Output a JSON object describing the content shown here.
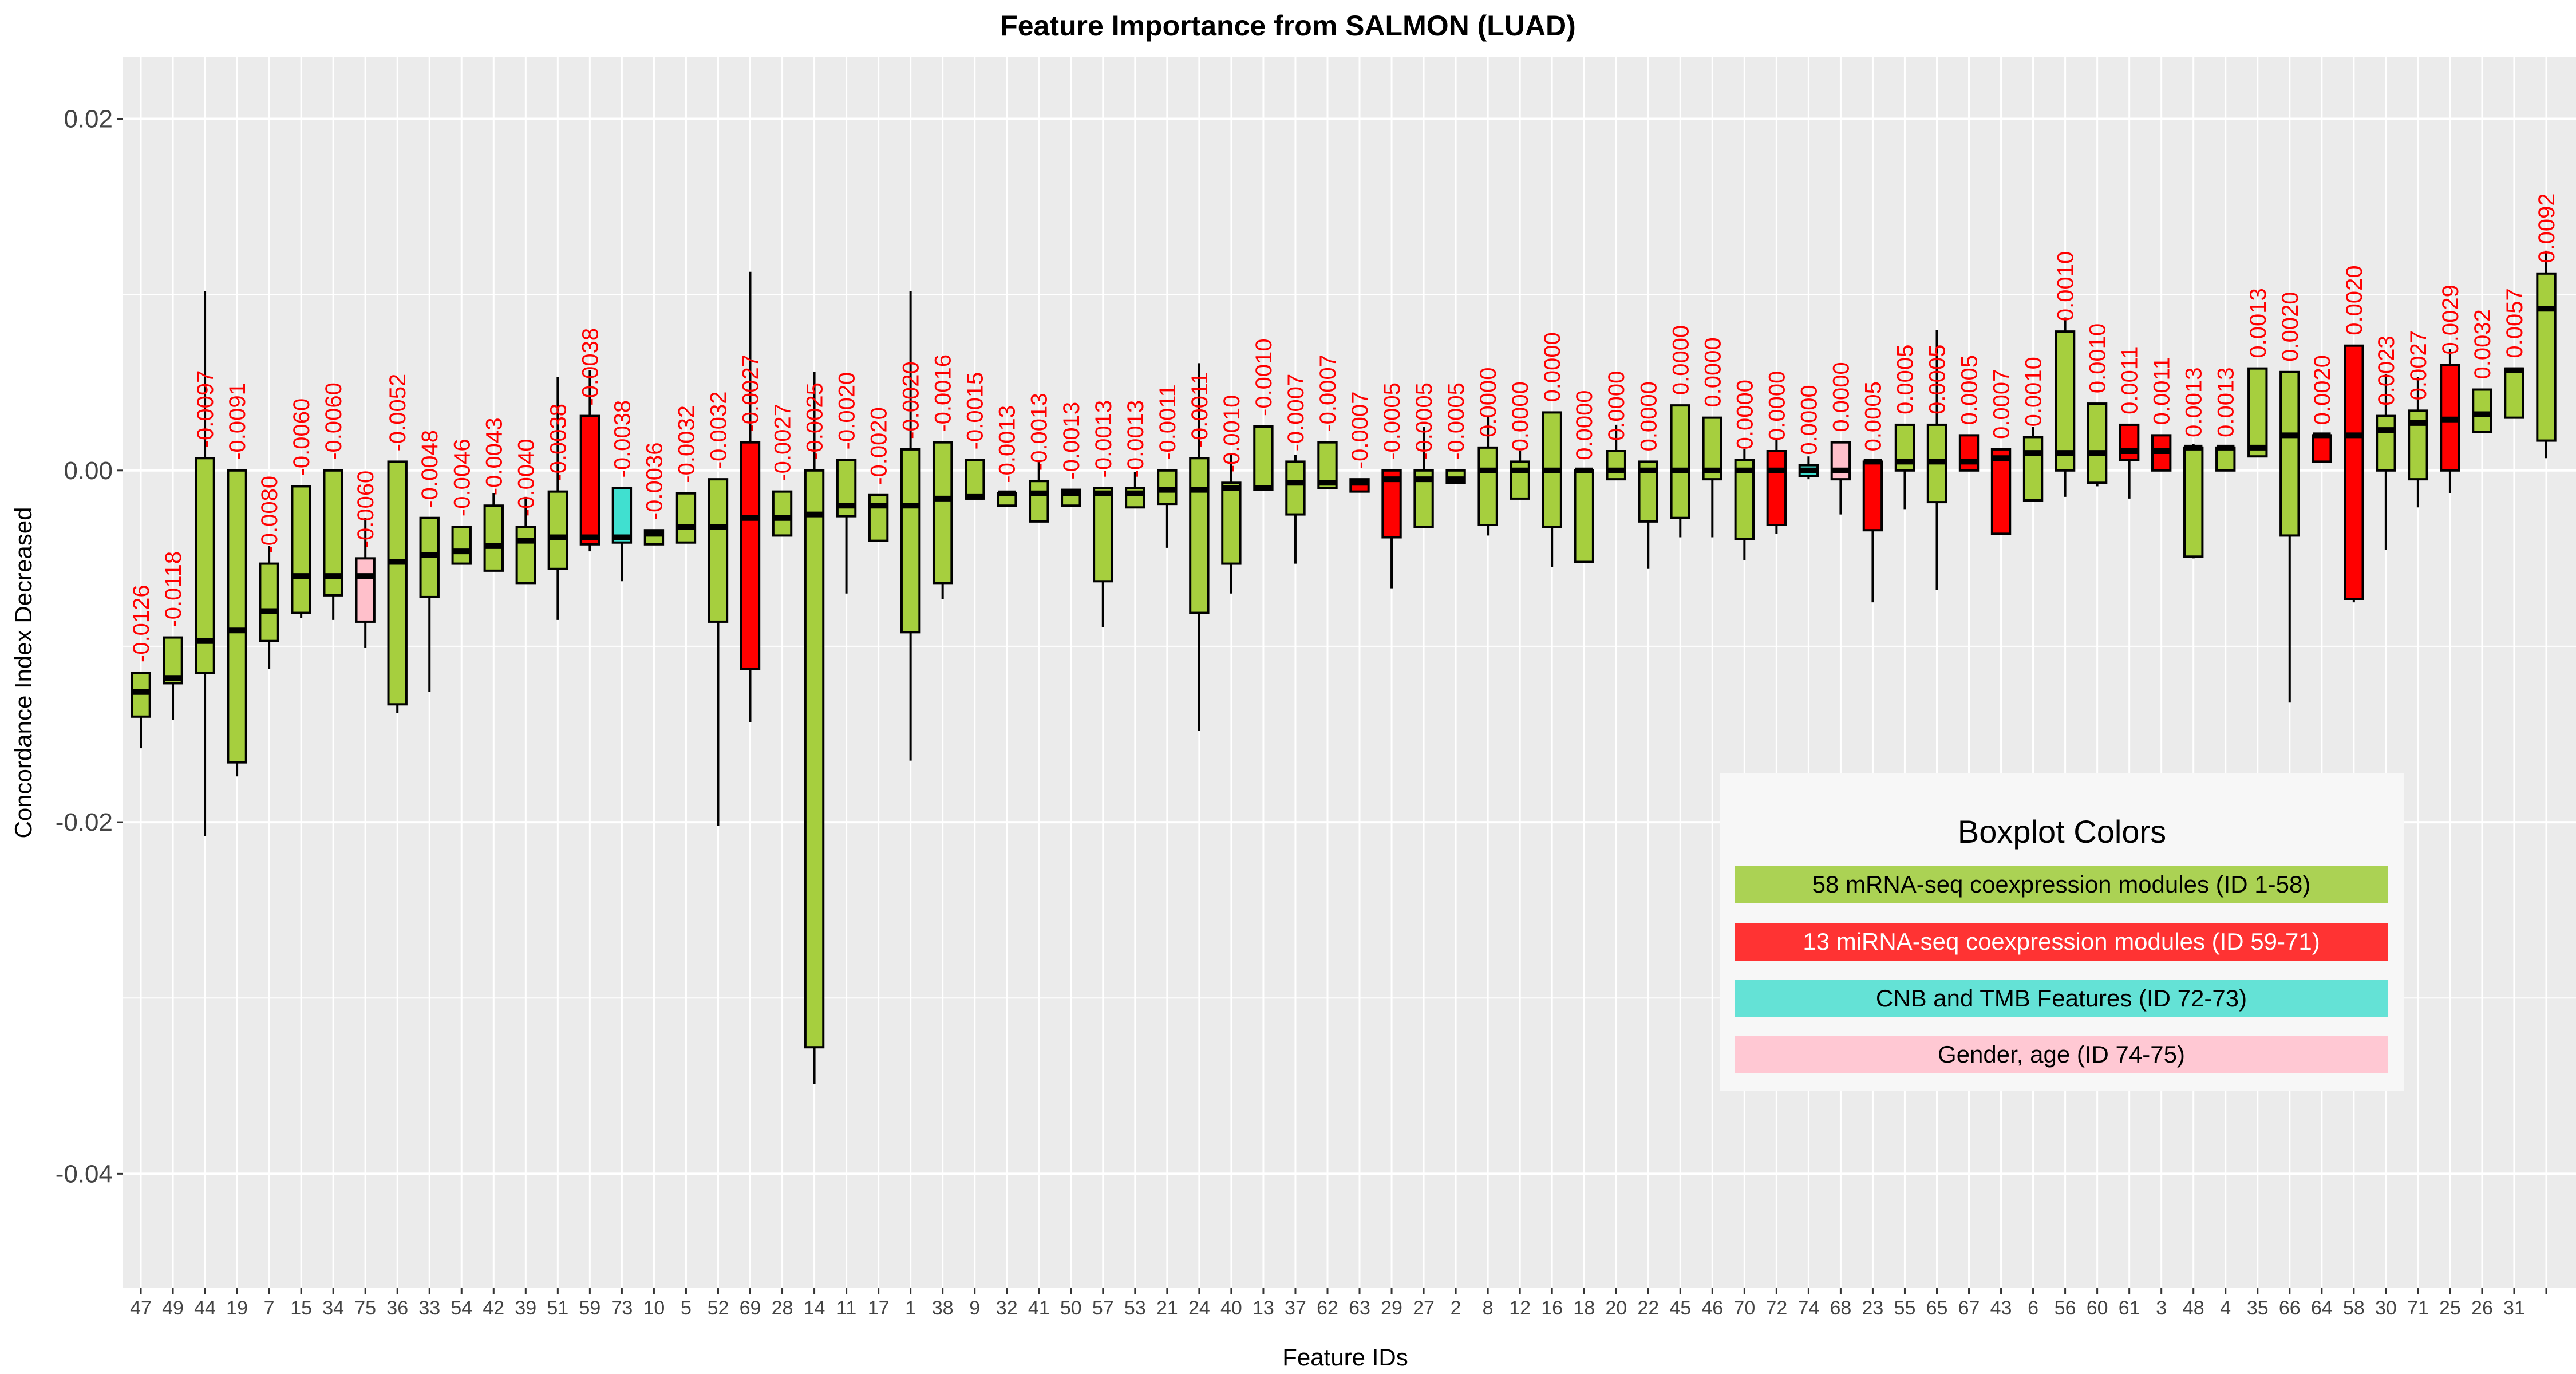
{
  "chart_data": {
    "type": "boxplot",
    "title": "Feature Importance from SALMON (LUAD)",
    "xlabel": "Feature IDs",
    "ylabel": "Concordance Index Decreased",
    "ylim": [
      -0.0465,
      0.0235
    ],
    "yticks": [
      0.02,
      0.0,
      -0.02,
      -0.04
    ],
    "ytick_labels": [
      "0.02",
      "0.00",
      "-0.02",
      "-0.04"
    ],
    "grid": true,
    "legend": {
      "title": "Boxplot Colors",
      "placement": "bottom-right",
      "entries": [
        {
          "label": "58 mRNA-seq coexpression modules (ID 1-58)",
          "color": "#abd254",
          "text_color": "#000000"
        },
        {
          "label": "13 miRNA-seq coexpression modules (ID 59-71)",
          "color": "#ff3333",
          "text_color": "#ffffff"
        },
        {
          "label": "CNB and TMB Features (ID 72-73)",
          "color": "#64e2d6",
          "text_color": "#000000"
        },
        {
          "label": "Gender, age (ID 74-75)",
          "color": "#ffc8d3",
          "text_color": "#000000"
        }
      ]
    },
    "colors": {
      "mrna": "#a6cf3e",
      "mirna": "#ff0000",
      "cnb": "#40e0d0",
      "gender": "#ffc0cb"
    },
    "boxes": [
      {
        "id": "47",
        "group": "mrna",
        "label": "-0.0126",
        "median": -0.0126,
        "q1": -0.014,
        "q3": -0.0115,
        "lo": -0.0158,
        "hi": -0.0115
      },
      {
        "id": "49",
        "group": "mrna",
        "label": "-0.0118",
        "median": -0.0118,
        "q1": -0.0121,
        "q3": -0.0095,
        "lo": -0.0142,
        "hi": -0.0095
      },
      {
        "id": "44",
        "group": "mrna",
        "label": "-0.0097",
        "median": -0.0097,
        "q1": -0.0115,
        "q3": 0.0007,
        "lo": -0.0208,
        "hi": 0.0102
      },
      {
        "id": "19",
        "group": "mrna",
        "label": "-0.0091",
        "median": -0.0091,
        "q1": -0.0166,
        "q3": 0.0,
        "lo": -0.0174,
        "hi": 0.0
      },
      {
        "id": "7",
        "group": "mrna",
        "label": "-0.0080",
        "median": -0.008,
        "q1": -0.0097,
        "q3": -0.0053,
        "lo": -0.0113,
        "hi": -0.0043
      },
      {
        "id": "15",
        "group": "mrna",
        "label": "-0.0060",
        "median": -0.006,
        "q1": -0.0081,
        "q3": -0.0009,
        "lo": -0.0084,
        "hi": -0.0009
      },
      {
        "id": "34",
        "group": "mrna",
        "label": "-0.0060",
        "median": -0.006,
        "q1": -0.0071,
        "q3": 0.0,
        "lo": -0.0085,
        "hi": 0.0
      },
      {
        "id": "75",
        "group": "gender",
        "label": "-0.0060",
        "median": -0.006,
        "q1": -0.0086,
        "q3": -0.005,
        "lo": -0.0101,
        "hi": -0.0027
      },
      {
        "id": "36",
        "group": "mrna",
        "label": "-0.0052",
        "median": -0.0052,
        "q1": -0.0133,
        "q3": 0.0005,
        "lo": -0.0138,
        "hi": 0.0005
      },
      {
        "id": "33",
        "group": "mrna",
        "label": "-0.0048",
        "median": -0.0048,
        "q1": -0.0072,
        "q3": -0.0027,
        "lo": -0.0126,
        "hi": -0.0027
      },
      {
        "id": "54",
        "group": "mrna",
        "label": "-0.0046",
        "median": -0.0046,
        "q1": -0.0053,
        "q3": -0.0032,
        "lo": -0.0053,
        "hi": -0.0032
      },
      {
        "id": "42",
        "group": "mrna",
        "label": "-0.0043",
        "median": -0.0043,
        "q1": -0.0057,
        "q3": -0.002,
        "lo": -0.0057,
        "hi": -0.0013
      },
      {
        "id": "39",
        "group": "mrna",
        "label": "-0.0040",
        "median": -0.004,
        "q1": -0.0064,
        "q3": -0.0032,
        "lo": -0.0064,
        "hi": -0.0015
      },
      {
        "id": "51",
        "group": "mrna",
        "label": "-0.0038",
        "median": -0.0038,
        "q1": -0.0056,
        "q3": -0.0012,
        "lo": -0.0085,
        "hi": 0.0053
      },
      {
        "id": "59",
        "group": "mirna",
        "label": "-0.0038",
        "median": -0.0038,
        "q1": -0.0042,
        "q3": 0.0031,
        "lo": -0.0046,
        "hi": 0.0057
      },
      {
        "id": "73",
        "group": "cnb",
        "label": "-0.0038",
        "median": -0.0038,
        "q1": -0.0041,
        "q3": -0.001,
        "lo": -0.0063,
        "hi": -0.001
      },
      {
        "id": "10",
        "group": "mrna",
        "label": "-0.0036",
        "median": -0.0036,
        "q1": -0.0042,
        "q3": -0.0034,
        "lo": -0.0042,
        "hi": -0.0034
      },
      {
        "id": "5",
        "group": "mrna",
        "label": "-0.0032",
        "median": -0.0032,
        "q1": -0.0041,
        "q3": -0.0013,
        "lo": -0.0041,
        "hi": -0.0013
      },
      {
        "id": "52",
        "group": "mrna",
        "label": "-0.0032",
        "median": -0.0032,
        "q1": -0.0086,
        "q3": -0.0005,
        "lo": -0.0202,
        "hi": -0.0005
      },
      {
        "id": "69",
        "group": "mirna",
        "label": "-0.0027",
        "median": -0.0027,
        "q1": -0.0113,
        "q3": 0.0016,
        "lo": -0.0143,
        "hi": 0.0113
      },
      {
        "id": "28",
        "group": "mrna",
        "label": "-0.0027",
        "median": -0.0027,
        "q1": -0.0037,
        "q3": -0.0012,
        "lo": -0.0037,
        "hi": -0.0012
      },
      {
        "id": "14",
        "group": "mrna",
        "label": "-0.0025",
        "median": -0.0025,
        "q1": -0.0328,
        "q3": 0.0,
        "lo": -0.0349,
        "hi": 0.0056
      },
      {
        "id": "11",
        "group": "mrna",
        "label": "-0.0020",
        "median": -0.002,
        "q1": -0.0026,
        "q3": 0.0006,
        "lo": -0.007,
        "hi": 0.0006
      },
      {
        "id": "17",
        "group": "mrna",
        "label": "-0.0020",
        "median": -0.002,
        "q1": -0.004,
        "q3": -0.0014,
        "lo": -0.004,
        "hi": -0.0014
      },
      {
        "id": "1",
        "group": "mrna",
        "label": "-0.0020",
        "median": -0.002,
        "q1": -0.0092,
        "q3": 0.0012,
        "lo": -0.0165,
        "hi": 0.0102
      },
      {
        "id": "38",
        "group": "mrna",
        "label": "-0.0016",
        "median": -0.0016,
        "q1": -0.0064,
        "q3": 0.0016,
        "lo": -0.0073,
        "hi": 0.0016
      },
      {
        "id": "9",
        "group": "mrna",
        "label": "-0.0015",
        "median": -0.0015,
        "q1": -0.0016,
        "q3": 0.0006,
        "lo": -0.0016,
        "hi": 0.0006
      },
      {
        "id": "32",
        "group": "mrna",
        "label": "-0.0013",
        "median": -0.0013,
        "q1": -0.002,
        "q3": -0.0013,
        "lo": -0.002,
        "hi": -0.0013
      },
      {
        "id": "41",
        "group": "mrna",
        "label": "-0.0013",
        "median": -0.0013,
        "q1": -0.0029,
        "q3": -0.0006,
        "lo": -0.0029,
        "hi": 0.0006
      },
      {
        "id": "50",
        "group": "mrna",
        "label": "-0.0013",
        "median": -0.0013,
        "q1": -0.002,
        "q3": -0.0011,
        "lo": -0.002,
        "hi": -0.0011
      },
      {
        "id": "57",
        "group": "mrna",
        "label": "-0.0013",
        "median": -0.0013,
        "q1": -0.0063,
        "q3": -0.001,
        "lo": -0.0089,
        "hi": -0.001
      },
      {
        "id": "53",
        "group": "mrna",
        "label": "-0.0013",
        "median": -0.0013,
        "q1": -0.0021,
        "q3": -0.001,
        "lo": -0.0021,
        "hi": -0.0001
      },
      {
        "id": "21",
        "group": "mrna",
        "label": "-0.0011",
        "median": -0.0011,
        "q1": -0.0019,
        "q3": 0.0,
        "lo": -0.0044,
        "hi": 0.0
      },
      {
        "id": "24",
        "group": "mrna",
        "label": "-0.0011",
        "median": -0.0011,
        "q1": -0.0081,
        "q3": 0.0007,
        "lo": -0.0148,
        "hi": 0.0061
      },
      {
        "id": "40",
        "group": "mrna",
        "label": "-0.0010",
        "median": -0.001,
        "q1": -0.0053,
        "q3": -0.0007,
        "lo": -0.007,
        "hi": 0.001
      },
      {
        "id": "13",
        "group": "mrna",
        "label": "-0.0010",
        "median": -0.001,
        "q1": -0.0011,
        "q3": 0.0025,
        "lo": -0.0011,
        "hi": 0.0025
      },
      {
        "id": "37",
        "group": "mrna",
        "label": "-0.0007",
        "median": -0.0007,
        "q1": -0.0025,
        "q3": 0.0005,
        "lo": -0.0053,
        "hi": 0.0009
      },
      {
        "id": "62",
        "group": "mrna",
        "label": "-0.0007",
        "median": -0.0007,
        "q1": -0.001,
        "q3": 0.0016,
        "lo": -0.001,
        "hi": 0.0016
      },
      {
        "id": "63",
        "group": "mirna",
        "label": "-0.0007",
        "median": -0.0007,
        "q1": -0.0012,
        "q3": -0.0005,
        "lo": -0.0012,
        "hi": -0.0005
      },
      {
        "id": "29",
        "group": "mirna",
        "label": "-0.0005",
        "median": -0.0005,
        "q1": -0.0038,
        "q3": 0.0,
        "lo": -0.0067,
        "hi": 0.0
      },
      {
        "id": "27",
        "group": "mrna",
        "label": "-0.0005",
        "median": -0.0005,
        "q1": -0.0032,
        "q3": 0.0,
        "lo": -0.0032,
        "hi": 0.0025
      },
      {
        "id": "2",
        "group": "mrna",
        "label": "-0.0005",
        "median": -0.0005,
        "q1": -0.0007,
        "q3": 0.0,
        "lo": -0.0007,
        "hi": 0.0
      },
      {
        "id": "8",
        "group": "mrna",
        "label": "0.0000",
        "median": 0.0,
        "q1": -0.0031,
        "q3": 0.0013,
        "lo": -0.0037,
        "hi": 0.0031
      },
      {
        "id": "12",
        "group": "mrna",
        "label": "0.0000",
        "median": 0.0,
        "q1": -0.0016,
        "q3": 0.0005,
        "lo": -0.0016,
        "hi": 0.0011
      },
      {
        "id": "16",
        "group": "mrna",
        "label": "0.0000",
        "median": 0.0,
        "q1": -0.0032,
        "q3": 0.0033,
        "lo": -0.0055,
        "hi": 0.0033
      },
      {
        "id": "18",
        "group": "mrna",
        "label": "0.0000",
        "median": 0.0,
        "q1": -0.0052,
        "q3": 0.0,
        "lo": -0.0052,
        "hi": 0.0
      },
      {
        "id": "20",
        "group": "mrna",
        "label": "0.0000",
        "median": 0.0,
        "q1": -0.0005,
        "q3": 0.0011,
        "lo": -0.0005,
        "hi": 0.0026
      },
      {
        "id": "22",
        "group": "mrna",
        "label": "0.0000",
        "median": 0.0,
        "q1": -0.0029,
        "q3": 0.0005,
        "lo": -0.0056,
        "hi": 0.0005
      },
      {
        "id": "45",
        "group": "mrna",
        "label": "0.0000",
        "median": 0.0,
        "q1": -0.0027,
        "q3": 0.0037,
        "lo": -0.0038,
        "hi": 0.0037
      },
      {
        "id": "46",
        "group": "mrna",
        "label": "0.0000",
        "median": 0.0,
        "q1": -0.0005,
        "q3": 0.003,
        "lo": -0.0038,
        "hi": 0.003
      },
      {
        "id": "70",
        "group": "mrna",
        "label": "0.0000",
        "median": 0.0,
        "q1": -0.0039,
        "q3": 0.0006,
        "lo": -0.0051,
        "hi": 0.0012
      },
      {
        "id": "72",
        "group": "mirna",
        "label": "0.0000",
        "median": 0.0,
        "q1": -0.0031,
        "q3": 0.0011,
        "lo": -0.0036,
        "hi": 0.0018
      },
      {
        "id": "74",
        "group": "cnb",
        "label": "0.0000",
        "median": 0.0,
        "q1": -0.0003,
        "q3": 0.0003,
        "lo": -0.0005,
        "hi": 0.0008
      },
      {
        "id": "68",
        "group": "gender",
        "label": "0.0000",
        "median": 0.0,
        "q1": -0.0005,
        "q3": 0.0016,
        "lo": -0.0025,
        "hi": 0.0016
      },
      {
        "id": "23",
        "group": "mirna",
        "label": "0.0005",
        "median": 0.0005,
        "q1": -0.0034,
        "q3": 0.0005,
        "lo": -0.0075,
        "hi": 0.0005
      },
      {
        "id": "55",
        "group": "mrna",
        "label": "0.0005",
        "median": 0.0005,
        "q1": 0.0,
        "q3": 0.0026,
        "lo": -0.0022,
        "hi": 0.0026
      },
      {
        "id": "65",
        "group": "mrna",
        "label": "0.0005",
        "median": 0.0005,
        "q1": -0.0018,
        "q3": 0.0026,
        "lo": -0.0068,
        "hi": 0.008
      },
      {
        "id": "67",
        "group": "mirna",
        "label": "0.0005",
        "median": 0.0005,
        "q1": 0.0,
        "q3": 0.002,
        "lo": 0.0,
        "hi": 0.002
      },
      {
        "id": "43",
        "group": "mirna",
        "label": "0.0007",
        "median": 0.0007,
        "q1": -0.0036,
        "q3": 0.0012,
        "lo": -0.0036,
        "hi": 0.0012
      },
      {
        "id": "6",
        "group": "mrna",
        "label": "0.0010",
        "median": 0.001,
        "q1": -0.0017,
        "q3": 0.0019,
        "lo": -0.0017,
        "hi": 0.0025
      },
      {
        "id": "56",
        "group": "mrna",
        "label": "0.0010",
        "median": 0.001,
        "q1": 0.0,
        "q3": 0.0079,
        "lo": -0.0015,
        "hi": 0.0087
      },
      {
        "id": "60",
        "group": "mrna",
        "label": "0.0010",
        "median": 0.001,
        "q1": -0.0007,
        "q3": 0.0038,
        "lo": -0.0009,
        "hi": 0.0038
      },
      {
        "id": "61",
        "group": "mirna",
        "label": "0.0011",
        "median": 0.0011,
        "q1": 0.0006,
        "q3": 0.0026,
        "lo": -0.0016,
        "hi": 0.0026
      },
      {
        "id": "3",
        "group": "mirna",
        "label": "0.0011",
        "median": 0.0011,
        "q1": 0.0,
        "q3": 0.002,
        "lo": 0.0,
        "hi": 0.002
      },
      {
        "id": "48",
        "group": "mrna",
        "label": "0.0013",
        "median": 0.0013,
        "q1": -0.0049,
        "q3": 0.0013,
        "lo": -0.005,
        "hi": 0.0015
      },
      {
        "id": "4",
        "group": "mrna",
        "label": "0.0013",
        "median": 0.0013,
        "q1": 0.0,
        "q3": 0.0013,
        "lo": 0.0,
        "hi": 0.0013
      },
      {
        "id": "35",
        "group": "mrna",
        "label": "0.0013",
        "median": 0.0013,
        "q1": 0.0008,
        "q3": 0.0058,
        "lo": 0.0008,
        "hi": 0.0058
      },
      {
        "id": "66",
        "group": "mrna",
        "label": "0.0020",
        "median": 0.002,
        "q1": -0.0037,
        "q3": 0.0056,
        "lo": -0.0132,
        "hi": 0.0056
      },
      {
        "id": "64",
        "group": "mirna",
        "label": "0.0020",
        "median": 0.002,
        "q1": 0.0005,
        "q3": 0.002,
        "lo": 0.0005,
        "hi": 0.002
      },
      {
        "id": "58",
        "group": "mirna",
        "label": "0.0020",
        "median": 0.002,
        "q1": -0.0073,
        "q3": 0.0071,
        "lo": -0.0075,
        "hi": 0.0071
      },
      {
        "id": "30",
        "group": "mrna",
        "label": "0.0023",
        "median": 0.0023,
        "q1": 0.0,
        "q3": 0.0031,
        "lo": -0.0045,
        "hi": 0.0055
      },
      {
        "id": "71",
        "group": "mrna",
        "label": "0.0027",
        "median": 0.0027,
        "q1": -0.0005,
        "q3": 0.0034,
        "lo": -0.0021,
        "hi": 0.0053
      },
      {
        "id": "25",
        "group": "mirna",
        "label": "0.0029",
        "median": 0.0029,
        "q1": 0.0,
        "q3": 0.006,
        "lo": -0.0013,
        "hi": 0.0069
      },
      {
        "id": "26",
        "group": "mrna",
        "label": "0.0032",
        "median": 0.0032,
        "q1": 0.0022,
        "q3": 0.0046,
        "lo": 0.0022,
        "hi": 0.0046
      },
      {
        "id": "31",
        "group": "mrna",
        "label": "0.0057",
        "median": 0.0057,
        "q1": 0.003,
        "q3": 0.0058,
        "lo": 0.003,
        "hi": 0.0058
      },
      {
        "id": "",
        "group": "mrna",
        "label": "0.0092",
        "median": 0.0092,
        "q1": 0.0017,
        "q3": 0.0112,
        "lo": 0.0007,
        "hi": 0.0125
      }
    ]
  }
}
